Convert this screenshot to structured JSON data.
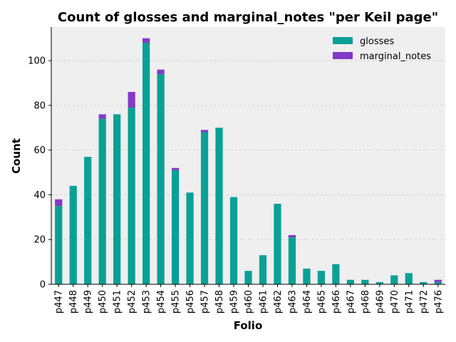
{
  "chart_data": {
    "type": "bar",
    "stacked": true,
    "title": "Count of glosses and marginal_notes \"per Keil page\"",
    "xlabel": "Folio",
    "ylabel": "Count",
    "ylim": [
      0,
      115
    ],
    "yticks": [
      0,
      20,
      40,
      60,
      80,
      100
    ],
    "grid": "y",
    "legend_position": "top-right",
    "categories": [
      "p447",
      "p448",
      "p449",
      "p450",
      "p451",
      "p452",
      "p453",
      "p454",
      "p455",
      "p456",
      "p457",
      "p458",
      "p459",
      "p460",
      "p461",
      "p462",
      "p463",
      "p464",
      "p465",
      "p466",
      "p467",
      "p468",
      "p469",
      "p470",
      "p471",
      "p472",
      "p476"
    ],
    "series": [
      {
        "name": "glosses",
        "color": "#0aa195",
        "values": [
          35,
          44,
          57,
          74,
          76,
          79,
          108,
          94,
          51,
          41,
          68,
          70,
          39,
          6,
          13,
          36,
          21,
          7,
          6,
          9,
          2,
          2,
          1,
          4,
          5,
          1,
          1
        ]
      },
      {
        "name": "marginal_notes",
        "color": "#8439c9",
        "values": [
          3,
          0,
          0,
          2,
          0,
          7,
          2,
          2,
          1,
          0,
          1,
          0,
          0,
          0,
          0,
          0,
          1,
          0,
          0,
          0,
          0,
          0,
          0,
          0,
          0,
          0,
          1
        ]
      }
    ],
    "plot_background": "#efefef",
    "grid_color": "#cccccc"
  }
}
